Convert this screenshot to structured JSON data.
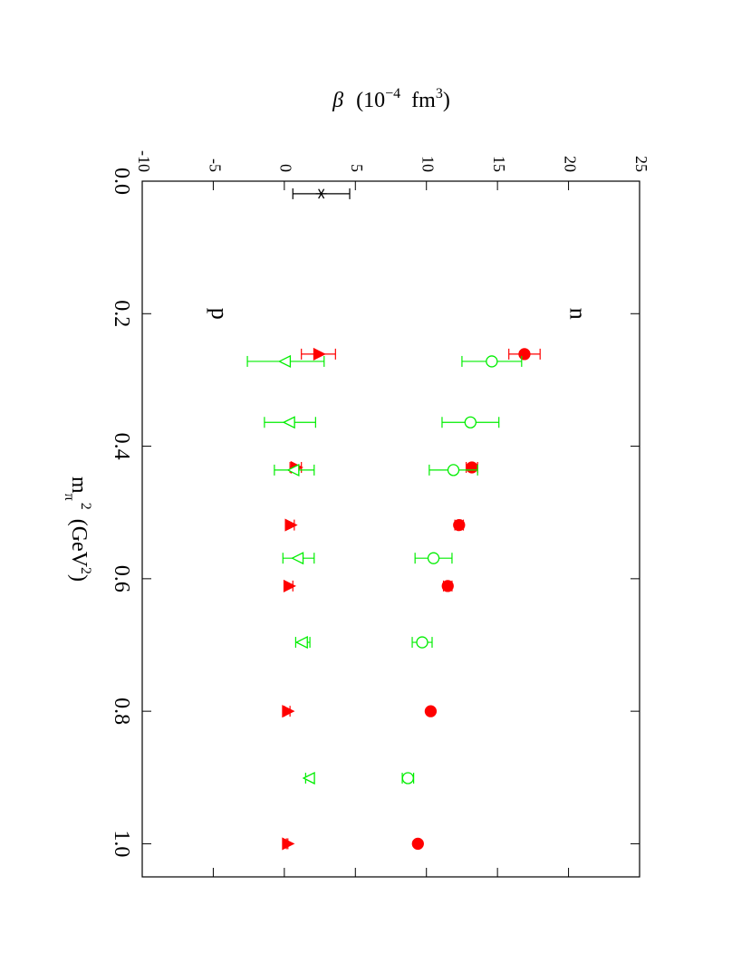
{
  "chart_data": {
    "type": "scatter",
    "xlim": [
      0,
      1.05
    ],
    "ylim": [
      -10,
      25
    ],
    "xticks": [
      {
        "value": 0,
        "label": "0.0"
      },
      0.2,
      0.4,
      0.6,
      0.8,
      {
        "value": 1,
        "label": "1.0"
      }
    ],
    "yticks": [
      -10,
      -5,
      0,
      5,
      10,
      15,
      20,
      25
    ],
    "xlabel": {
      "main": "m",
      "sub": "π",
      "sup": "2",
      "unit": "(GeV",
      "unit_sup": "2",
      "close": ")"
    },
    "ylabel": {
      "main": "β",
      "unit": "(10",
      "unit_sup": "−4",
      "fm": "fm",
      "fm_sup": "3",
      "close": ")"
    },
    "annotations": [
      "n",
      "p"
    ],
    "series": [
      {
        "color": "#000000",
        "marker": "star",
        "x": [
          0.019
        ],
        "values": [
          2.6
        ],
        "errors": [
          2.0
        ]
      },
      {
        "color": "#ff0000",
        "marker": "filled-circle",
        "x": [
          0.261,
          0.432,
          0.519,
          0.611,
          0.8,
          1.0
        ],
        "values": [
          16.9,
          13.2,
          12.3,
          11.5,
          10.3,
          9.4
        ],
        "errors": [
          1.1,
          0.4,
          0.3,
          0.3,
          0.1,
          0.1
        ]
      },
      {
        "color": "#00ee00",
        "marker": "open-circle",
        "x": [
          0.272,
          0.364,
          0.436,
          0.569,
          0.696,
          0.901
        ],
        "values": [
          14.6,
          13.1,
          11.9,
          10.5,
          9.7,
          8.7
        ],
        "errors": [
          2.1,
          2.0,
          1.7,
          1.3,
          0.7,
          0.4
        ]
      },
      {
        "color": "#ff0000",
        "marker": "filled-triangle-up",
        "x": [
          0.261,
          0.432,
          0.519,
          0.611,
          0.8,
          1.0
        ],
        "values": [
          2.4,
          0.8,
          0.4,
          0.3,
          0.2,
          0.2
        ],
        "errors": [
          1.2,
          0.4,
          0.3,
          0.3,
          0.2,
          0.05
        ]
      },
      {
        "color": "#00ee00",
        "marker": "open-triangle-down",
        "x": [
          0.272,
          0.364,
          0.436,
          0.569,
          0.696,
          0.901
        ],
        "values": [
          0.1,
          0.4,
          0.7,
          1.0,
          1.3,
          1.8
        ],
        "errors": [
          2.7,
          1.8,
          1.4,
          1.1,
          0.5,
          0.3
        ]
      }
    ]
  }
}
